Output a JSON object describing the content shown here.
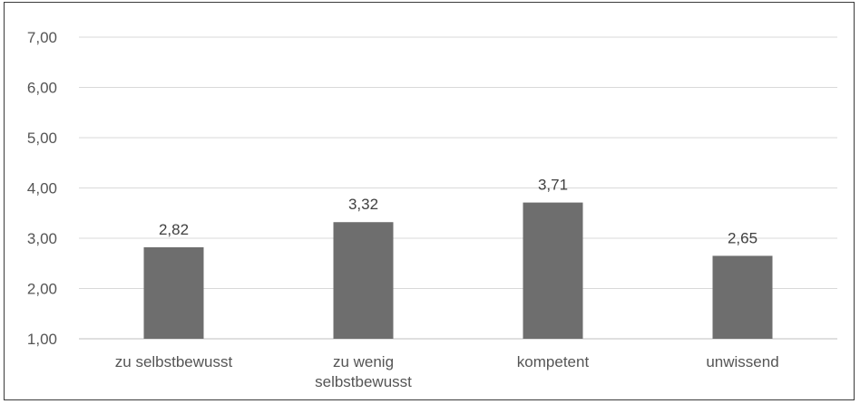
{
  "chart_data": {
    "type": "bar",
    "categories": [
      [
        "zu selbstbewusst"
      ],
      [
        "zu wenig",
        "selbstbewusst"
      ],
      [
        "kompetent"
      ],
      [
        "unwissend"
      ]
    ],
    "values": [
      2.82,
      3.32,
      3.71,
      2.65
    ],
    "value_labels": [
      "2,82",
      "3,32",
      "3,71",
      "2,65"
    ],
    "ylim": [
      1,
      7
    ],
    "yticks": [
      1,
      2,
      3,
      4,
      5,
      6,
      7
    ],
    "ytick_labels": [
      "1,00",
      "2,00",
      "3,00",
      "4,00",
      "5,00",
      "6,00",
      "7,00"
    ],
    "grid": true,
    "title": "",
    "xlabel": "",
    "ylabel": "",
    "bar_color": "#6e6e6e",
    "grid_color": "#d9d9d9"
  }
}
